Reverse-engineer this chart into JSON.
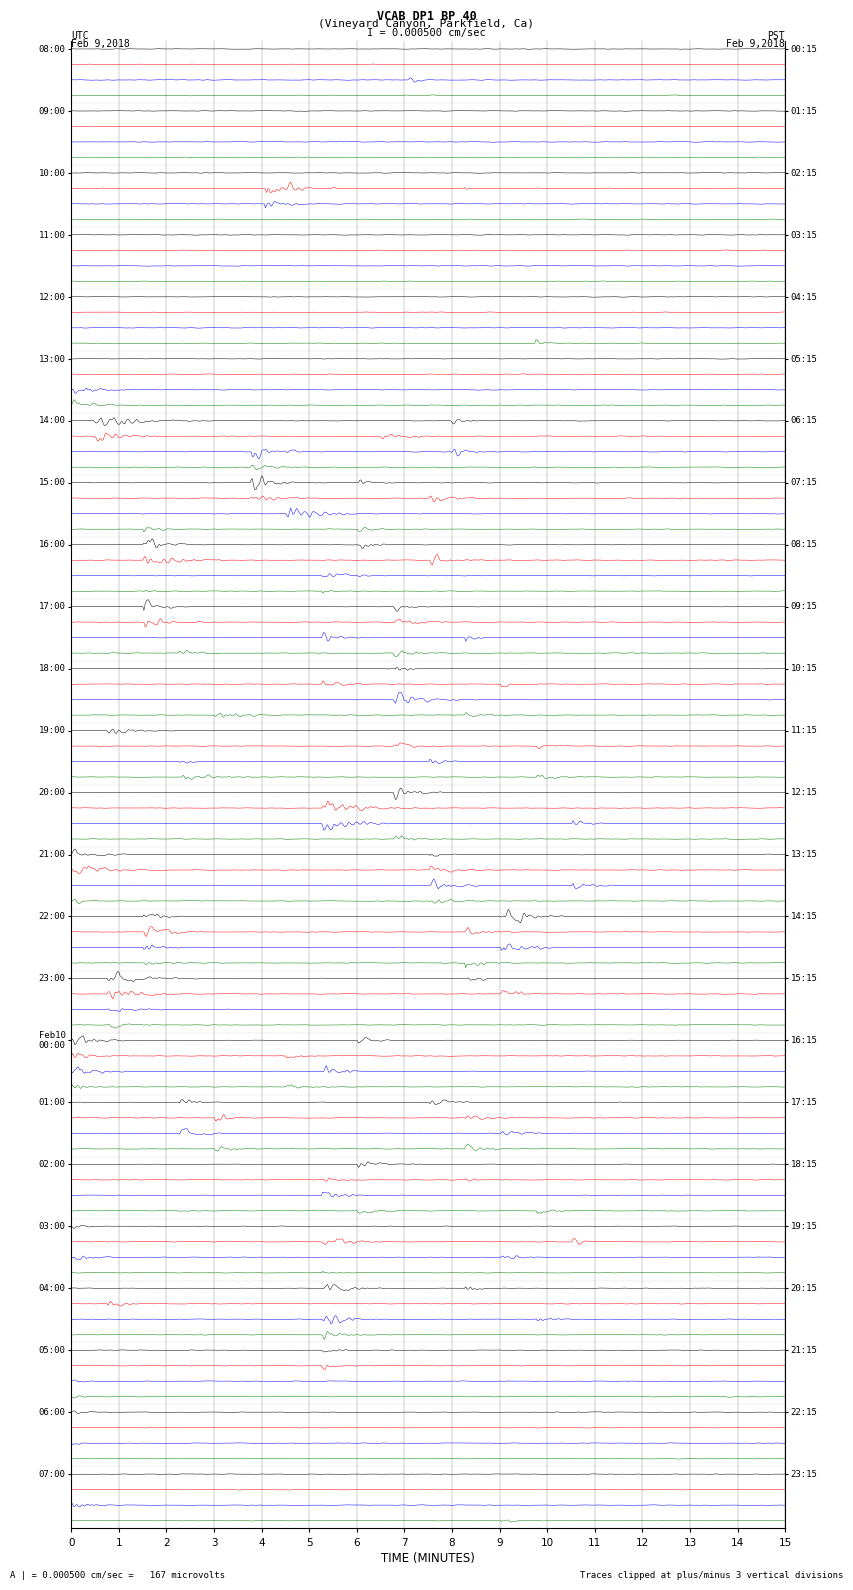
{
  "title_line1": "VCAB DP1 BP 40",
  "title_line2": "(Vineyard Canyon, Parkfield, Ca)",
  "scale_label": "I = 0.000500 cm/sec",
  "left_label": "UTC",
  "left_date": "Feb 9,2018",
  "right_label": "PST",
  "right_date": "Feb 9,2018",
  "xlabel": "TIME (MINUTES)",
  "bottom_left": "A | = 0.000500 cm/sec =   167 microvolts",
  "bottom_right": "Traces clipped at plus/minus 3 vertical divisions",
  "utc_times": [
    "08:00",
    "09:00",
    "10:00",
    "11:00",
    "12:00",
    "13:00",
    "14:00",
    "15:00",
    "16:00",
    "17:00",
    "18:00",
    "19:00",
    "20:00",
    "21:00",
    "22:00",
    "23:00",
    "Feb10\n00:00",
    "01:00",
    "02:00",
    "03:00",
    "04:00",
    "05:00",
    "06:00",
    "07:00"
  ],
  "pst_times": [
    "00:15",
    "01:15",
    "02:15",
    "03:15",
    "04:15",
    "05:15",
    "06:15",
    "07:15",
    "08:15",
    "09:15",
    "10:15",
    "11:15",
    "12:15",
    "13:15",
    "14:15",
    "15:15",
    "16:15",
    "17:15",
    "18:15",
    "19:15",
    "20:15",
    "21:15",
    "22:15",
    "23:15"
  ],
  "colors": [
    "black",
    "red",
    "blue",
    "green"
  ],
  "n_hours": 24,
  "traces_per_hour": 4,
  "minutes": 15,
  "background_color": "white"
}
